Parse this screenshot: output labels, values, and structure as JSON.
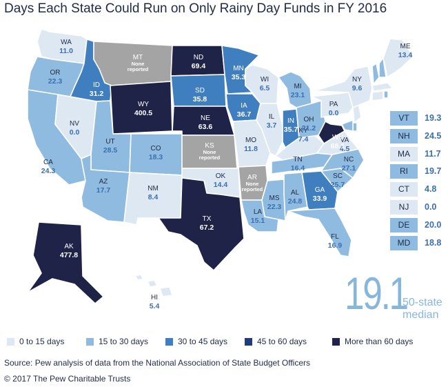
{
  "title": "Days Each State Could Run on Only Rainy Day Funds in FY 2016",
  "colors": {
    "c0_15": "#dde8f3",
    "c15_30": "#8fbbe0",
    "c30_45": "#3f7fc0",
    "c45_60": "#1f3d7a",
    "c60_plus": "#1e2347",
    "none": "#a4a4a4",
    "text_dark": "#1f2a44",
    "text_blue": "#3a6fb0"
  },
  "legend": [
    {
      "label": "0 to 15 days",
      "color_key": "c0_15"
    },
    {
      "label": "15 to 30 days",
      "color_key": "c15_30"
    },
    {
      "label": "30 to 45 days",
      "color_key": "c30_45"
    },
    {
      "label": "45 to 60 days",
      "color_key": "c45_60"
    },
    {
      "label": "More than 60 days",
      "color_key": "c60_plus"
    }
  ],
  "states": [
    {
      "code": "WA",
      "value": "11.0"
    },
    {
      "code": "OR",
      "value": "22.3"
    },
    {
      "code": "CA",
      "value": "24.3"
    },
    {
      "code": "NV",
      "value": "0.0"
    },
    {
      "code": "ID",
      "value": "31.2"
    },
    {
      "code": "MT",
      "value": "",
      "note": "None reported"
    },
    {
      "code": "WY",
      "value": "400.5"
    },
    {
      "code": "UT",
      "value": "28.5"
    },
    {
      "code": "AZ",
      "value": "17.7"
    },
    {
      "code": "CO",
      "value": "18.3"
    },
    {
      "code": "NM",
      "value": "8.4"
    },
    {
      "code": "ND",
      "value": "69.4"
    },
    {
      "code": "SD",
      "value": "35.8"
    },
    {
      "code": "NE",
      "value": "63.6"
    },
    {
      "code": "KS",
      "value": "",
      "note": "None reported"
    },
    {
      "code": "OK",
      "value": "14.4"
    },
    {
      "code": "TX",
      "value": "67.2"
    },
    {
      "code": "MN",
      "value": "35.3"
    },
    {
      "code": "IA",
      "value": "36.7"
    },
    {
      "code": "MO",
      "value": "11.8"
    },
    {
      "code": "AR",
      "value": "",
      "note": "None reported"
    },
    {
      "code": "LA",
      "value": "15.1"
    },
    {
      "code": "WI",
      "value": "6.5"
    },
    {
      "code": "IL",
      "value": "3.7"
    },
    {
      "code": "MS",
      "value": "22.3"
    },
    {
      "code": "MI",
      "value": "23.1"
    },
    {
      "code": "IN",
      "value": "35.7"
    },
    {
      "code": "KY",
      "value": "7.4"
    },
    {
      "code": "TN",
      "value": "16.4"
    },
    {
      "code": "AL",
      "value": "24.8"
    },
    {
      "code": "OH",
      "value": "21.2"
    },
    {
      "code": "GA",
      "value": "33.9"
    },
    {
      "code": "FL",
      "value": "16.9"
    },
    {
      "code": "SC",
      "value": "25.7"
    },
    {
      "code": "NC",
      "value": "27.1"
    },
    {
      "code": "VA",
      "value": "4.5"
    },
    {
      "code": "WV",
      "value": "68.1"
    },
    {
      "code": "PA",
      "value": "0.0"
    },
    {
      "code": "NY",
      "value": "9.6"
    },
    {
      "code": "ME",
      "value": "13.4"
    },
    {
      "code": "AK",
      "value": "477.8"
    },
    {
      "code": "HI",
      "value": "5.4"
    }
  ],
  "northeast_table": [
    {
      "code": "VT",
      "value": "19.3"
    },
    {
      "code": "NH",
      "value": "24.5"
    },
    {
      "code": "MA",
      "value": "11.7"
    },
    {
      "code": "RI",
      "value": "19.7"
    },
    {
      "code": "CT",
      "value": "4.8"
    },
    {
      "code": "NJ",
      "value": "0.0"
    },
    {
      "code": "DE",
      "value": "20.0"
    },
    {
      "code": "MD",
      "value": "18.8"
    }
  ],
  "median": {
    "value": "19.1",
    "label_line1": "50-state",
    "label_line2": "median"
  },
  "source": "Source: Pew analysis of data from the National Association of State Budget Officers",
  "copyright": "© 2017 The Pew Charitable Trusts"
}
